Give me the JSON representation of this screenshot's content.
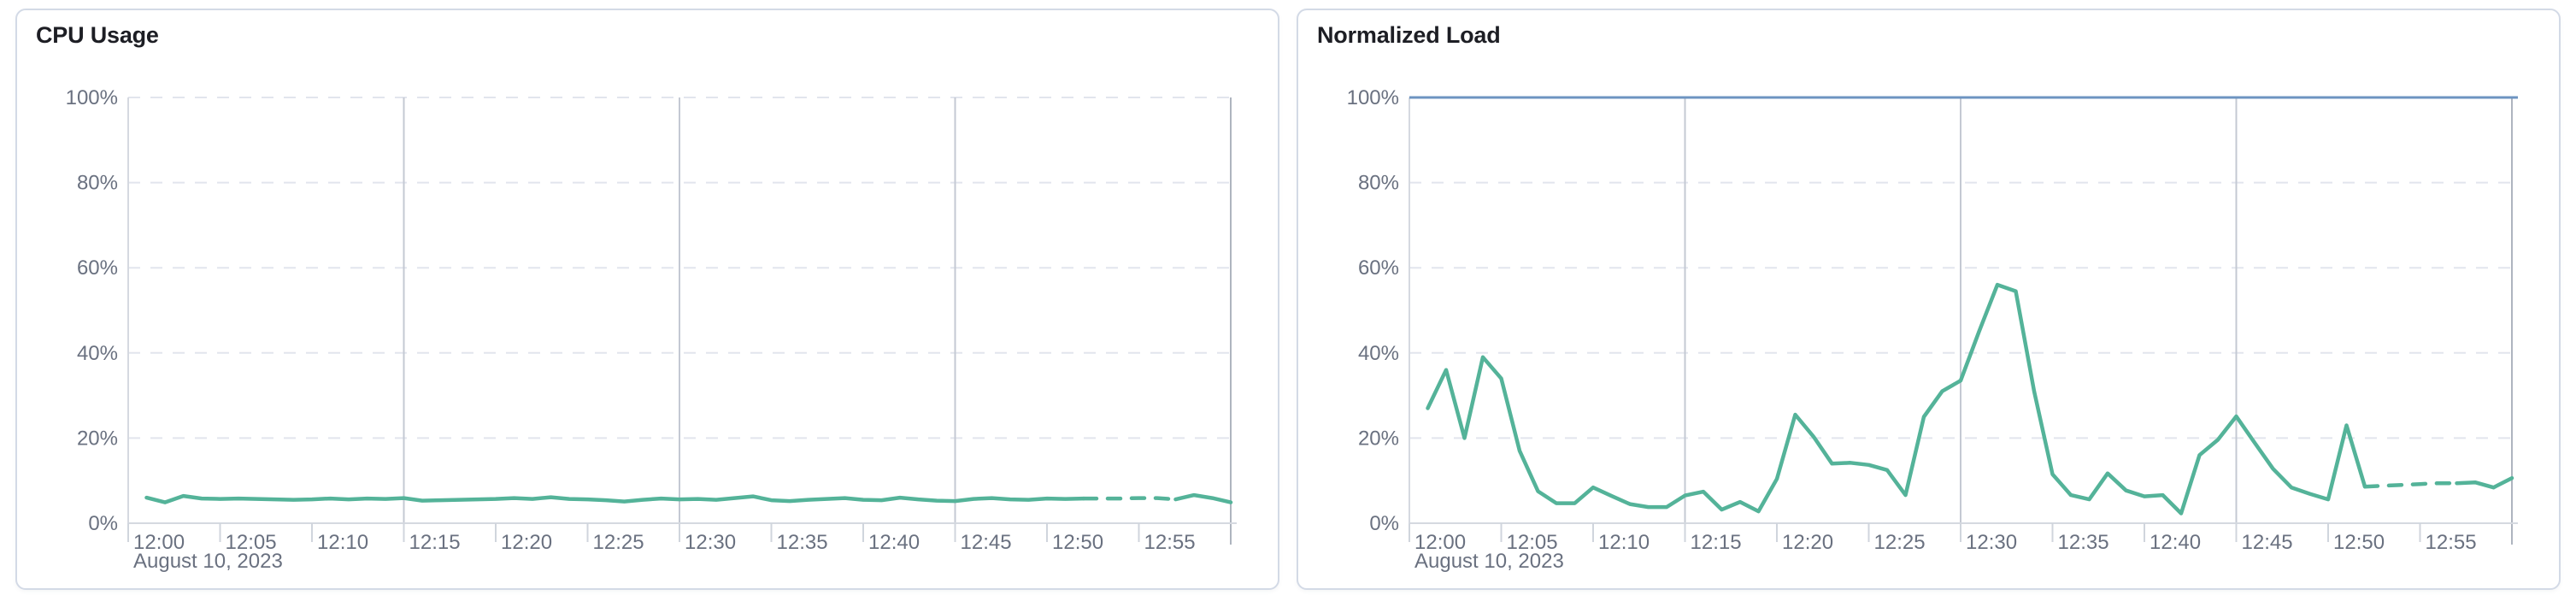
{
  "colors": {
    "background": "#ffffff",
    "panel_border": "#d3dae6",
    "title_text": "#1d1e24",
    "label_text": "#6a7180",
    "grid_dashed": "#e2e5ed",
    "grid_vertical": "#c4c9d3",
    "grid_end_line": "#aeb4bf",
    "axis_line": "#d5d9e0",
    "tick": "#d0d5dd",
    "line_green": "#54b399",
    "limit_blue": "#6d94c1"
  },
  "panels": [
    {
      "title": "CPU Usage"
    },
    {
      "title": "Normalized Load"
    }
  ],
  "chart_data": [
    {
      "type": "line",
      "title": "CPU Usage",
      "date_label": "August 10, 2023",
      "x_start_time": "12:00",
      "x_domain_minutes": [
        0,
        60
      ],
      "x_tick_interval_minutes": 5,
      "x_tick_labels": [
        "12:00",
        "12:05",
        "12:10",
        "12:15",
        "12:20",
        "12:25",
        "12:30",
        "12:35",
        "12:40",
        "12:45",
        "12:50",
        "12:55"
      ],
      "vertical_gridline_minutes": [
        15,
        30,
        45,
        60
      ],
      "ylim": [
        0,
        100
      ],
      "y_tick_values": [
        0,
        20,
        40,
        60,
        80,
        100
      ],
      "y_tick_labels": [
        "0%",
        "20%",
        "40%",
        "60%",
        "80%",
        "100%"
      ],
      "grid": "horizontal-dashed, vertical-15min",
      "legend": "none",
      "series": [
        {
          "name": "cpu-usage",
          "color": "#54b399",
          "start_minute": 1,
          "unit": "%",
          "values": [
            6.0,
            4.9,
            6.4,
            5.8,
            5.7,
            5.8,
            5.7,
            5.6,
            5.5,
            5.6,
            5.8,
            5.6,
            5.8,
            5.7,
            5.9,
            5.3,
            5.4,
            5.5,
            5.6,
            5.7,
            5.9,
            5.7,
            6.1,
            5.7,
            5.6,
            5.4,
            5.1,
            5.5,
            5.8,
            5.6,
            5.7,
            5.5,
            5.9,
            6.3,
            5.4,
            5.2,
            5.5,
            5.7,
            5.9,
            5.5,
            5.4,
            6.0,
            5.6,
            5.3,
            5.2,
            5.7,
            5.9,
            5.6,
            5.5,
            5.8,
            5.7,
            5.8,
            5.8,
            5.8,
            5.9,
            5.9,
            5.6,
            6.6,
            5.9,
            4.9
          ],
          "segments": [
            {
              "from": 1,
              "to": 52,
              "dashed": false
            },
            {
              "from": 52,
              "to": 57,
              "dashed": true
            },
            {
              "from": 57,
              "to": 60,
              "dashed": false
            }
          ]
        }
      ]
    },
    {
      "type": "line",
      "title": "Normalized Load",
      "date_label": "August 10, 2023",
      "x_start_time": "12:00",
      "x_domain_minutes": [
        0,
        60
      ],
      "x_tick_interval_minutes": 5,
      "x_tick_labels": [
        "12:00",
        "12:05",
        "12:10",
        "12:15",
        "12:20",
        "12:25",
        "12:30",
        "12:35",
        "12:40",
        "12:45",
        "12:50",
        "12:55"
      ],
      "vertical_gridline_minutes": [
        15,
        30,
        45,
        60
      ],
      "ylim": [
        0,
        100
      ],
      "y_tick_values": [
        0,
        20,
        40,
        60,
        80,
        100
      ],
      "y_tick_labels": [
        "0%",
        "20%",
        "40%",
        "60%",
        "80%",
        "100%"
      ],
      "grid": "horizontal-dashed, vertical-15min",
      "legend": "none",
      "series": [
        {
          "name": "normalized-load",
          "color": "#54b399",
          "start_minute": 1,
          "unit": "%",
          "values": [
            27,
            36,
            20,
            39,
            34,
            17,
            7.5,
            4.7,
            4.7,
            8.4,
            6.4,
            4.5,
            3.8,
            3.8,
            6.5,
            7.4,
            3.2,
            5.0,
            2.8,
            10.4,
            25.5,
            20.3,
            14.0,
            14.2,
            13.7,
            12.5,
            6.6,
            25,
            31,
            33.5,
            45,
            56,
            54.5,
            31,
            11.5,
            6.6,
            5.6,
            11.7,
            7.7,
            6.3,
            6.6,
            2.3,
            16,
            19.6,
            25.1,
            18.9,
            12.8,
            8.4,
            6.9,
            5.6,
            23,
            8.6,
            8.8,
            9.0,
            9.2,
            9.4,
            9.4,
            9.6,
            8.4,
            10.6
          ],
          "segments": [
            {
              "from": 1,
              "to": 52,
              "dashed": false
            },
            {
              "from": 52,
              "to": 57,
              "dashed": true
            },
            {
              "from": 57,
              "to": 60,
              "dashed": false
            }
          ]
        },
        {
          "name": "load-limit-100",
          "color": "#6d94c1",
          "constant_value": 100,
          "from_minute": 0,
          "to_minute": 60
        }
      ]
    }
  ]
}
